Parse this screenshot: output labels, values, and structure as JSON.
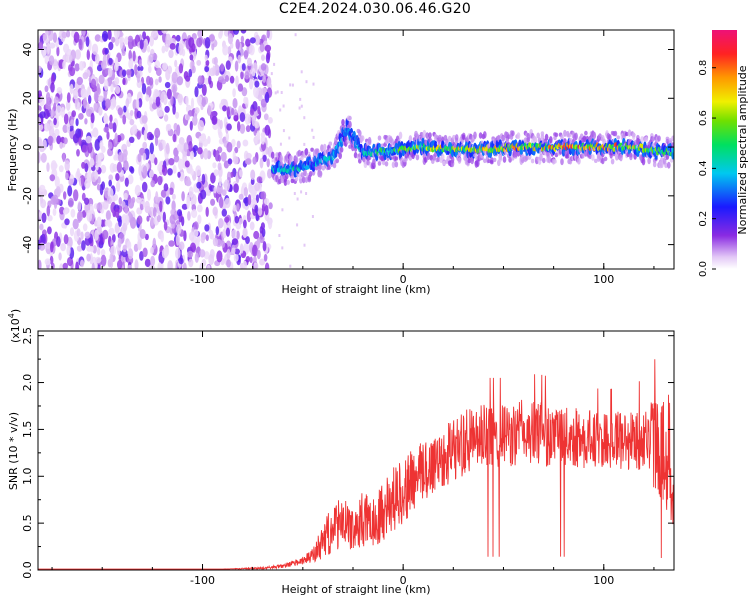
{
  "title": "C2E4.2024.030.06.46.G20",
  "chart_data": [
    {
      "type": "heatmap",
      "xlabel": "Height of straight line (km)",
      "ylabel": "Frequency (Hz)",
      "xlim": [
        -182,
        135
      ],
      "ylim": [
        -50,
        48
      ],
      "xticks": [
        -100,
        0,
        100
      ],
      "yticks": [
        -40,
        -20,
        0,
        20,
        40
      ],
      "colorbar": {
        "label": "Normalized spectral amplitude",
        "range": [
          0,
          0.95
        ],
        "ticks": [
          0.0,
          0.2,
          0.4,
          0.6,
          0.8
        ]
      },
      "noise_region_x": [
        -182,
        -66
      ],
      "signal_ridge": [
        {
          "x": -65,
          "freq": -9,
          "amp": 0.45
        },
        {
          "x": -55,
          "freq": -9,
          "amp": 0.5
        },
        {
          "x": -45,
          "freq": -7,
          "amp": 0.4
        },
        {
          "x": -35,
          "freq": -4,
          "amp": 0.45
        },
        {
          "x": -28,
          "freq": 8,
          "amp": 0.35
        },
        {
          "x": -20,
          "freq": -2,
          "amp": 0.45
        },
        {
          "x": -10,
          "freq": -2,
          "amp": 0.55
        },
        {
          "x": 0,
          "freq": -1,
          "amp": 0.6
        },
        {
          "x": 10,
          "freq": 0,
          "amp": 0.75
        },
        {
          "x": 25,
          "freq": -1,
          "amp": 0.75
        },
        {
          "x": 40,
          "freq": -1,
          "amp": 0.8
        },
        {
          "x": 55,
          "freq": 0,
          "amp": 0.8
        },
        {
          "x": 70,
          "freq": 0,
          "amp": 0.85
        },
        {
          "x": 85,
          "freq": 0,
          "amp": 0.9
        },
        {
          "x": 100,
          "freq": 0,
          "amp": 0.95
        },
        {
          "x": 115,
          "freq": 0,
          "amp": 0.75
        },
        {
          "x": 130,
          "freq": -2,
          "amp": 0.6
        }
      ],
      "grid": false
    },
    {
      "type": "line",
      "xlabel": "Height of straight line (km)",
      "ylabel": "SNR (10 * v/v)",
      "y_multiplier_label": "(x10",
      "y_multiplier_exp": "4",
      "y_multiplier_close": ")",
      "xlim": [
        -182,
        135
      ],
      "ylim": [
        0,
        2.55
      ],
      "xticks": [
        -100,
        0,
        100
      ],
      "yticks": [
        0.0,
        0.5,
        1.0,
        1.5,
        2.0,
        2.5
      ],
      "color": "#ee3333",
      "series": [
        {
          "x": [
            -182,
            -150,
            -120,
            -90,
            -70,
            -60,
            -50,
            -45,
            -40,
            -35,
            -30,
            -25,
            -20,
            -15,
            -10,
            -5,
            0,
            5,
            10,
            20,
            30,
            40,
            50,
            60,
            70,
            80,
            90,
            100,
            110,
            120,
            125,
            130,
            135
          ],
          "values": [
            0.01,
            0.01,
            0.01,
            0.01,
            0.02,
            0.04,
            0.1,
            0.15,
            0.3,
            0.45,
            0.5,
            0.42,
            0.55,
            0.5,
            0.65,
            0.75,
            0.85,
            0.95,
            1.05,
            1.22,
            1.35,
            1.42,
            1.42,
            1.47,
            1.45,
            1.42,
            1.4,
            1.38,
            1.38,
            1.4,
            1.35,
            1.25,
            0.8
          ],
          "spread": [
            0.0,
            0.0,
            0.0,
            0.0,
            0.01,
            0.02,
            0.04,
            0.08,
            0.2,
            0.25,
            0.28,
            0.2,
            0.3,
            0.25,
            0.35,
            0.35,
            0.35,
            0.35,
            0.35,
            0.35,
            0.35,
            0.35,
            0.35,
            0.35,
            0.35,
            0.32,
            0.32,
            0.3,
            0.32,
            0.35,
            0.5,
            0.55,
            0.35
          ]
        }
      ],
      "grid": false
    }
  ]
}
